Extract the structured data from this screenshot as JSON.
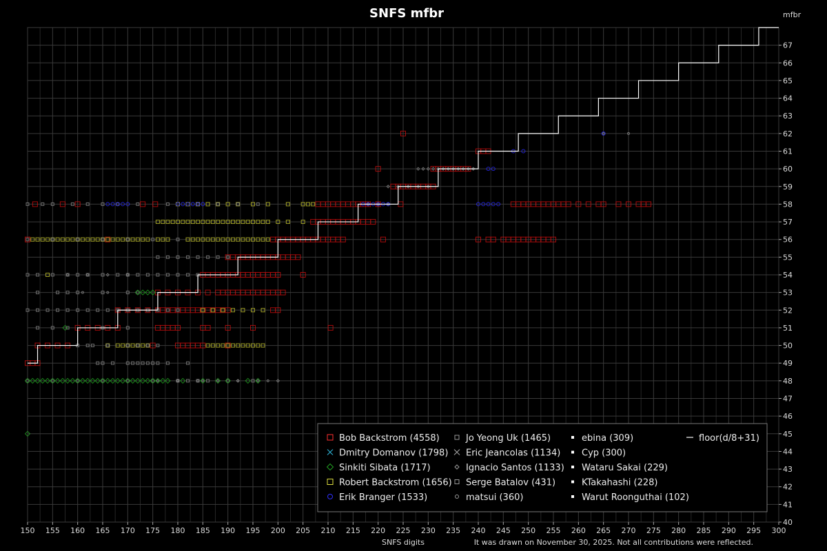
{
  "chart_data": {
    "type": "scatter",
    "title": "SNFS mfbr",
    "xlabel": "SNFS digits",
    "ylabel": "mfbr",
    "note": "It was drawn on November 30, 2025. Not all contributions were reflected.",
    "xlim": [
      150,
      300
    ],
    "ylim": [
      40,
      68
    ],
    "x_ticks": [
      150,
      155,
      160,
      165,
      170,
      175,
      180,
      185,
      190,
      195,
      200,
      205,
      210,
      215,
      220,
      225,
      230,
      235,
      240,
      245,
      250,
      255,
      260,
      265,
      270,
      275,
      280,
      285,
      290,
      295,
      300
    ],
    "y_ticks": [
      40,
      41,
      42,
      43,
      44,
      45,
      46,
      47,
      48,
      49,
      50,
      51,
      52,
      53,
      54,
      55,
      56,
      57,
      58,
      59,
      60,
      61,
      62,
      63,
      64,
      65,
      66,
      67
    ],
    "grid": true,
    "legend_position": "bottom-right",
    "colors": {
      "bob": "#dd1010",
      "dmitry": "#2aa6c8",
      "sinkiti": "#22a022",
      "robert": "#c8c832",
      "erik": "#2a2aff",
      "jo": "#888888",
      "eric": "#777777",
      "ignacio": "#888888",
      "serge": "#888888",
      "matsui": "#888888",
      "white": "#ffffff"
    },
    "legend": [
      {
        "label": "Bob Backstrom (4558)",
        "marker": "square",
        "color": "#ff3030"
      },
      {
        "label": "Dmitry Domanov (1798)",
        "marker": "cross",
        "color": "#2aa6c8"
      },
      {
        "label": "Sinkiti Sibata (1717)",
        "marker": "diamond",
        "color": "#22a022"
      },
      {
        "label": "Robert Backstrom (1656)",
        "marker": "square",
        "color": "#e0e040"
      },
      {
        "label": "Erik Branger (1533)",
        "marker": "circle",
        "color": "#3030ff"
      },
      {
        "label": "Jo Yeong Uk (1465)",
        "marker": "smallsquare",
        "color": "#999999"
      },
      {
        "label": "Eric Jeancolas (1134)",
        "marker": "x",
        "color": "#999999"
      },
      {
        "label": "Ignacio Santos (1133)",
        "marker": "smalldiamond",
        "color": "#999999"
      },
      {
        "label": "Serge Batalov (431)",
        "marker": "smallsquare",
        "color": "#999999"
      },
      {
        "label": "matsui (360)",
        "marker": "smallcircle",
        "color": "#999999"
      },
      {
        "label": "ebina (309)",
        "marker": "dot",
        "color": "#ffffff"
      },
      {
        "label": "Cyp (300)",
        "marker": "dot",
        "color": "#ffffff"
      },
      {
        "label": "Wataru Sakai (229)",
        "marker": "dot",
        "color": "#ffffff"
      },
      {
        "label": "KTakahashi (228)",
        "marker": "dot",
        "color": "#ffffff"
      },
      {
        "label": "Warut Roonguthai (102)",
        "marker": "dot",
        "color": "#ffffff"
      },
      {
        "label": "floor(d/8+31)",
        "marker": "line",
        "color": "#ffffff"
      }
    ],
    "series": [
      {
        "key": "bob",
        "marker": "square",
        "size": 7,
        "clusters": [
          {
            "y": 58,
            "x": [
              151.5,
              157,
              160,
              173,
              175.5,
              208,
              209,
              210,
              211,
              212,
              213,
              214,
              215,
              216,
              217,
              218,
              220,
              224.5,
              247,
              248,
              249,
              250,
              251,
              252,
              253,
              254,
              255,
              256,
              257,
              258,
              260,
              262,
              264,
              265,
              268,
              270,
              272,
              273,
              274
            ]
          },
          {
            "y": 62,
            "x": [
              225
            ]
          },
          {
            "y": 61,
            "x": [
              240,
              241,
              242
            ]
          },
          {
            "y": 60,
            "x": [
              220,
              231,
              232,
              233,
              234,
              235,
              236,
              237,
              238
            ]
          },
          {
            "y": 59,
            "x": [
              223,
              224,
              225,
              226,
              227,
              228,
              229,
              230,
              231
            ]
          },
          {
            "y": 57,
            "x": [
              207,
              208,
              209,
              210,
              211,
              212,
              213,
              214,
              215,
              216,
              217,
              218,
              219
            ]
          },
          {
            "y": 56,
            "x": [
              150,
              166,
              199,
              200,
              201,
              202,
              203,
              204,
              205,
              206,
              207,
              208,
              209,
              210,
              211,
              212,
              213,
              221,
              240,
              242,
              243,
              245,
              246,
              247,
              248,
              249,
              250,
              251,
              252,
              253,
              254,
              255
            ]
          },
          {
            "y": 55,
            "x": [
              190,
              191,
              192,
              193,
              194,
              195,
              196,
              197,
              198,
              199,
              200,
              201,
              202,
              203,
              204
            ]
          },
          {
            "y": 54,
            "x": [
              185,
              186,
              187,
              188,
              189,
              190,
              191,
              192,
              193,
              194,
              195,
              196,
              197,
              198,
              199,
              200,
              205
            ]
          },
          {
            "y": 53,
            "x": [
              176,
              178,
              180,
              182,
              184,
              186,
              188,
              189,
              190,
              191,
              192,
              193,
              194,
              195,
              196,
              197,
              198,
              199,
              200,
              201
            ]
          },
          {
            "y": 52,
            "x": [
              168,
              170,
              172,
              174,
              176,
              177,
              178,
              179,
              180,
              181,
              182,
              183,
              184,
              185,
              186,
              187,
              188,
              189,
              190,
              199,
              200
            ]
          },
          {
            "y": 51,
            "x": [
              160,
              162,
              164,
              166,
              168,
              176,
              177,
              178,
              179,
              180,
              185,
              186,
              190,
              195,
              210.5
            ]
          },
          {
            "y": 50,
            "x": [
              152,
              154,
              156,
              158,
              175,
              180,
              181,
              182,
              183,
              184,
              185,
              190
            ]
          },
          {
            "y": 49,
            "x": [
              150,
              151,
              152
            ]
          }
        ]
      },
      {
        "key": "robert",
        "marker": "square",
        "size": 5,
        "clusters": [
          {
            "y": 58,
            "x": [
              180,
              182,
              184,
              186,
              188,
              190,
              192,
              195,
              198,
              202,
              205,
              206,
              207
            ]
          },
          {
            "y": 57,
            "x": [
              176,
              177,
              178,
              179,
              180,
              181,
              182,
              183,
              184,
              185,
              186,
              187,
              188,
              189,
              190,
              191,
              192,
              193,
              194,
              195,
              196,
              197,
              198,
              200,
              202,
              205
            ]
          },
          {
            "y": 56,
            "x": [
              151,
              152,
              153,
              154,
              155,
              156,
              157,
              158,
              159,
              160,
              161,
              162,
              163,
              164,
              165,
              166,
              167,
              168,
              169,
              170,
              171,
              172,
              173,
              174,
              176,
              177,
              178,
              182,
              183,
              184,
              185,
              186,
              187,
              188,
              189,
              190,
              191,
              192,
              193,
              194,
              195,
              196,
              197,
              198
            ]
          },
          {
            "y": 52,
            "x": [
              185,
              187,
              189,
              191,
              193,
              195,
              197
            ]
          },
          {
            "y": 50,
            "x": [
              166,
              168,
              169,
              170,
              171,
              172,
              173,
              174,
              186,
              187,
              188,
              189,
              190,
              191,
              192,
              193,
              194,
              195,
              196,
              197
            ]
          },
          {
            "y": 54,
            "x": [
              154
            ]
          }
        ]
      },
      {
        "key": "jo",
        "marker": "square",
        "size": 4,
        "clusters": [
          {
            "y": 58,
            "x": [
              150,
              153,
              155,
              159,
              162,
              165,
              168,
              172,
              178,
              184,
              188,
              192,
              196
            ]
          },
          {
            "y": 56,
            "x": [
              150,
              155,
              160,
              165,
              170,
              175,
              180
            ]
          },
          {
            "y": 55,
            "x": [
              176,
              178,
              180,
              182,
              184,
              186,
              188,
              190
            ]
          },
          {
            "y": 54,
            "x": [
              150,
              152,
              155,
              158,
              160,
              162,
              165,
              168,
              170,
              172,
              174,
              176,
              178,
              180,
              182,
              184
            ]
          },
          {
            "y": 53,
            "x": [
              152,
              156,
              158,
              160,
              165,
              170,
              172
            ]
          },
          {
            "y": 52,
            "x": [
              150,
              152,
              154,
              156,
              158,
              160,
              162,
              164,
              166,
              168,
              170,
              172,
              174,
              176,
              178,
              180
            ]
          },
          {
            "y": 51,
            "x": [
              152,
              155,
              158,
              165,
              170
            ]
          },
          {
            "y": 50,
            "x": [
              160,
              162,
              163,
              166,
              170,
              172,
              174,
              176
            ]
          },
          {
            "y": 49,
            "x": [
              164,
              165,
              167,
              170,
              171,
              172,
              173,
              174,
              175,
              176,
              178,
              182
            ]
          },
          {
            "y": 48,
            "x": [
              150,
              155,
              160,
              165,
              170,
              175,
              180,
              182,
              184,
              186,
              190,
              195
            ]
          }
        ]
      },
      {
        "key": "ignacio",
        "marker": "diamond",
        "size": 4,
        "clusters": [
          {
            "y": 60,
            "x": [
              228,
              229,
              230,
              231,
              232,
              233,
              234,
              235,
              236,
              237,
              238,
              239
            ]
          },
          {
            "y": 59,
            "x": [
              222,
              224,
              226,
              228,
              230
            ]
          },
          {
            "y": 58,
            "x": [
              218,
              220,
              222
            ]
          },
          {
            "y": 54,
            "x": [
              158,
              162,
              166,
              170
            ]
          },
          {
            "y": 48,
            "x": [
              176,
              180,
              184,
              188,
              192,
              196,
              200
            ]
          }
        ]
      },
      {
        "key": "matsui",
        "marker": "circle",
        "size": 3,
        "clusters": [
          {
            "y": 62,
            "x": [
              265,
              270
            ]
          },
          {
            "y": 53,
            "x": [
              161,
              166
            ]
          },
          {
            "y": 48,
            "x": [
              180,
              185,
              192,
              198
            ]
          }
        ]
      },
      {
        "key": "sinkiti",
        "marker": "diamond",
        "size": 7,
        "clusters": [
          {
            "y": 48,
            "x": [
              150,
              151,
              152,
              153,
              154,
              155,
              156,
              157,
              158,
              159,
              160,
              161,
              162,
              163,
              164,
              165,
              166,
              167,
              168,
              169,
              170,
              171,
              172,
              173,
              174,
              175,
              176,
              177,
              178,
              181,
              185,
              188,
              190,
              194,
              196
            ]
          },
          {
            "y": 53,
            "x": [
              172,
              173,
              174,
              175
            ]
          },
          {
            "y": 51,
            "x": [
              157.5
            ]
          },
          {
            "y": 45,
            "x": [
              150
            ]
          }
        ]
      },
      {
        "key": "erik",
        "marker": "circle",
        "size": 5,
        "clusters": [
          {
            "y": 58,
            "x": [
              166,
              167,
              168,
              169,
              170,
              180,
              181,
              182,
              183,
              184,
              185,
              217,
              218,
              219,
              220,
              221,
              222,
              240,
              241,
              242,
              243,
              244
            ]
          },
          {
            "y": 60,
            "x": [
              242,
              243
            ]
          },
          {
            "y": 62,
            "x": [
              265
            ]
          },
          {
            "y": 61,
            "x": [
              247,
              249
            ]
          }
        ]
      }
    ],
    "formula_line": {
      "label": "floor(d/8+31)",
      "divisor": 8,
      "offset": 31,
      "x_from": 150,
      "x_to": 300
    }
  }
}
